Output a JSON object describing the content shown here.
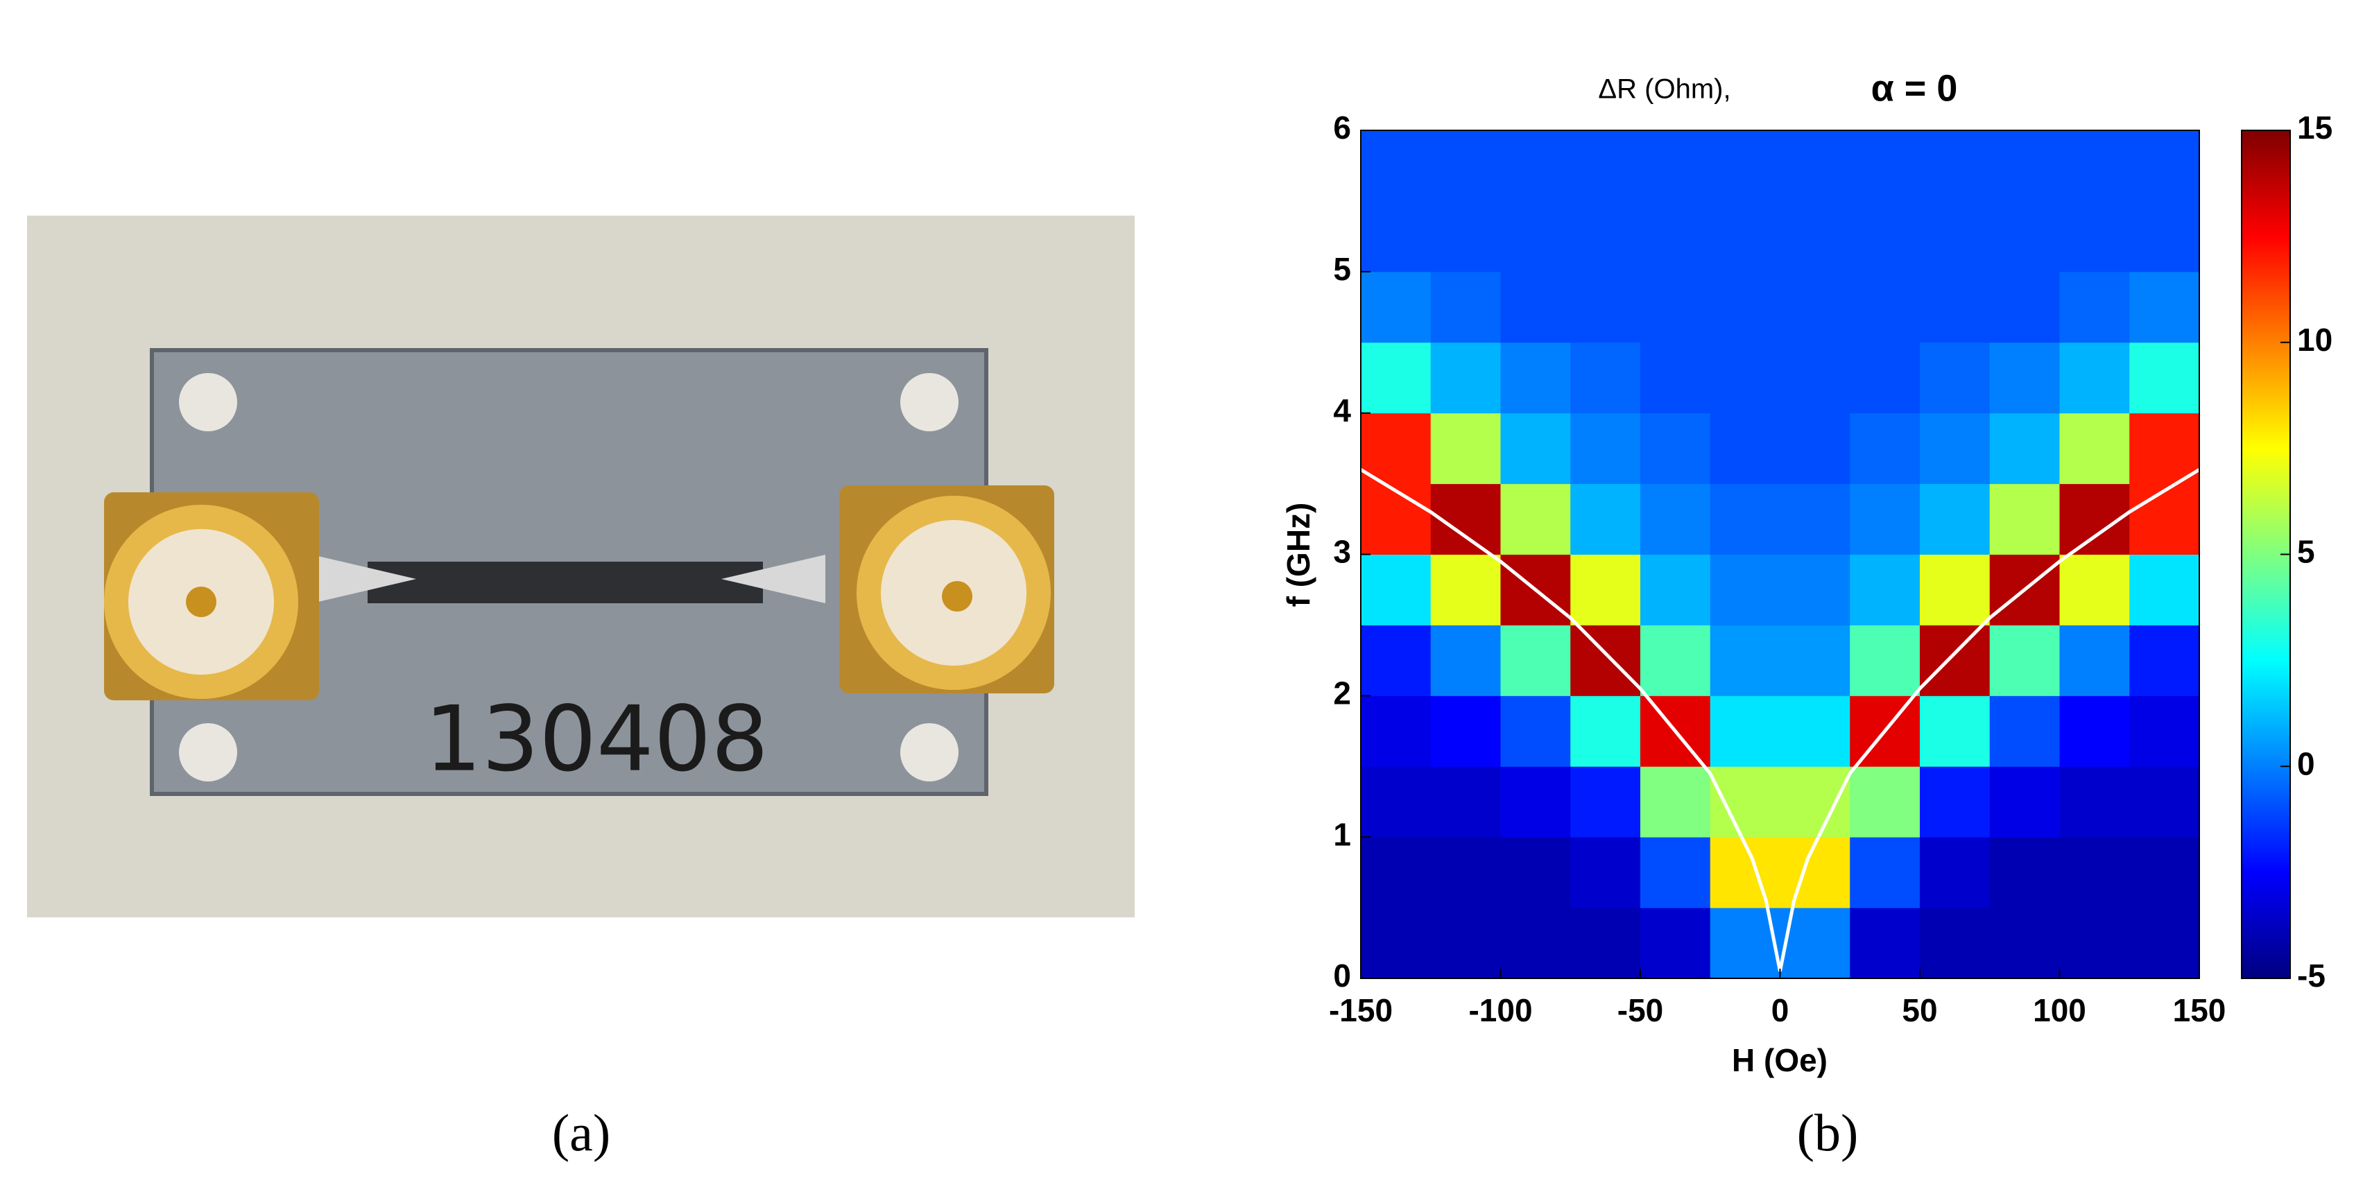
{
  "panels": [
    {
      "label": "(a)",
      "photo_text": "130408"
    },
    {
      "label": "(b)"
    }
  ],
  "chart_data": {
    "type": "heatmap",
    "title": "ΔR (Ohm),",
    "title_param": "α = 0",
    "xlabel": "H (Oe)",
    "ylabel": "f (GHz)",
    "xlim": [
      -150,
      150
    ],
    "xticks": [
      -150,
      -100,
      -50,
      0,
      50,
      100,
      150
    ],
    "ylim": [
      0,
      6
    ],
    "yticks": [
      0,
      1,
      2,
      3,
      4,
      5,
      6
    ],
    "clim": [
      -5,
      15
    ],
    "cticks": [
      -5,
      0,
      5,
      10,
      15
    ],
    "colormap": "jet",
    "x_edges": [
      -150,
      -125,
      -100,
      -75,
      -50,
      -25,
      0,
      25,
      50,
      75,
      100,
      125,
      150
    ],
    "y_edges": [
      0,
      0.5,
      1,
      1.5,
      2,
      2.5,
      3,
      3.5,
      4,
      4.5,
      5,
      5.5,
      6
    ],
    "z": [
      [
        -4,
        -4,
        -4,
        -4,
        -3.5,
        0,
        0,
        -3.5,
        -4,
        -4,
        -4,
        -4
      ],
      [
        -4,
        -4,
        -4,
        -3.5,
        -1,
        8,
        8,
        -1,
        -3.5,
        -4,
        -4,
        -4
      ],
      [
        -3.5,
        -3.5,
        -3,
        -2,
        5,
        6,
        6,
        5,
        -2,
        -3,
        -3.5,
        -3.5
      ],
      [
        -3,
        -2.5,
        -1,
        3,
        13,
        2,
        2,
        13,
        3,
        -1,
        -2.5,
        -3
      ],
      [
        -2,
        0,
        4,
        14,
        4,
        0.5,
        0.5,
        4,
        14,
        4,
        0,
        -2
      ],
      [
        2,
        7,
        14,
        7,
        1,
        0,
        0,
        1,
        7,
        14,
        7,
        2
      ],
      [
        12,
        14,
        6,
        1,
        0,
        -0.5,
        -0.5,
        0,
        1,
        6,
        14,
        12
      ],
      [
        12,
        6,
        1,
        0,
        -0.5,
        -1,
        -1,
        -0.5,
        0,
        1,
        6,
        12
      ],
      [
        3,
        1,
        0,
        -0.5,
        -1,
        -1,
        -1,
        -1,
        -0.5,
        0,
        1,
        3
      ],
      [
        0,
        -0.5,
        -1,
        -1,
        -1,
        -1,
        -1,
        -1,
        -1,
        -1,
        -0.5,
        0
      ],
      [
        -1,
        -1,
        -1,
        -1,
        -1,
        -1,
        -1,
        -1,
        -1,
        -1,
        -1,
        -1
      ],
      [
        -1,
        -1,
        -1,
        -1,
        -1,
        -1,
        -1,
        -1,
        -1,
        -1,
        -1,
        -1
      ]
    ],
    "series": [
      {
        "color": "#ffffff",
        "x": [
          -150,
          -125,
          -100,
          -75,
          -50,
          -25,
          -10,
          -5,
          0,
          5,
          10,
          25,
          50,
          75,
          100,
          125,
          150
        ],
        "values": [
          3.6,
          3.3,
          2.95,
          2.55,
          2.05,
          1.45,
          0.85,
          0.55,
          0.05,
          0.55,
          0.85,
          1.45,
          2.05,
          2.55,
          2.95,
          3.3,
          3.6
        ]
      }
    ]
  }
}
